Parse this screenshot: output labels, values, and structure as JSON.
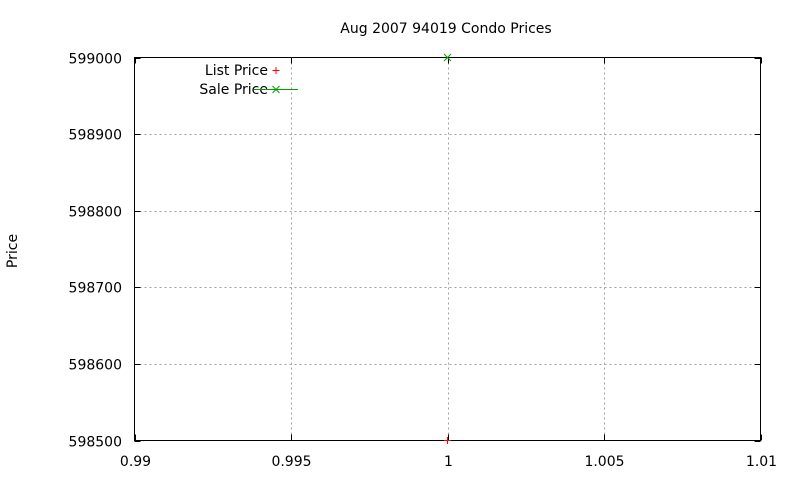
{
  "chart_data": {
    "type": "scatter",
    "title": "Aug 2007 94019 Condo Prices",
    "xlabel": "",
    "ylabel": "Price",
    "xlim": [
      0.99,
      1.01
    ],
    "ylim": [
      598500,
      599000
    ],
    "x_ticks": [
      "0.99",
      "0.995",
      "1",
      "1.005",
      "1.01"
    ],
    "x_tick_values": [
      0.99,
      0.995,
      1.0,
      1.005,
      1.01
    ],
    "y_ticks": [
      "598500",
      "598600",
      "598700",
      "598800",
      "598900",
      "599000"
    ],
    "y_tick_values": [
      598500,
      598600,
      598700,
      598800,
      598900,
      599000
    ],
    "grid": true,
    "legend_position": "top-left",
    "series": [
      {
        "name": "List Price",
        "color": "#ff0000",
        "marker": "plus",
        "points": [
          [
            1.0,
            598500
          ]
        ]
      },
      {
        "name": "Sale Price",
        "color": "#00a000",
        "marker": "cross",
        "points": [
          [
            1.0,
            599000
          ]
        ]
      }
    ]
  }
}
